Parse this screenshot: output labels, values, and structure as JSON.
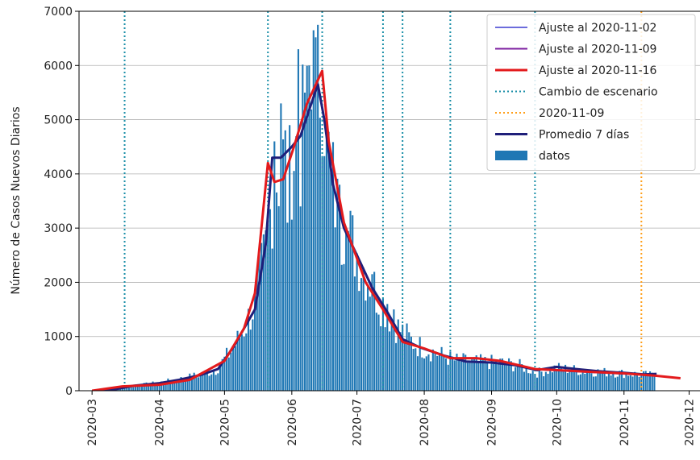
{
  "chart_data": {
    "type": "bar+line",
    "ylabel": "Número de Casos Nuevos Diarios",
    "ylim": [
      0,
      7000
    ],
    "yticks": [
      0,
      1000,
      2000,
      3000,
      4000,
      5000,
      6000,
      7000
    ],
    "ytick_labels": [
      "0",
      "1000",
      "2000",
      "3000",
      "4000",
      "5000",
      "6000",
      "7000"
    ],
    "xlim": [
      "2020-02-24",
      "2020-12-06"
    ],
    "xticks": [
      "2020-03-01",
      "2020-04-01",
      "2020-05-01",
      "2020-06-01",
      "2020-07-01",
      "2020-08-01",
      "2020-09-01",
      "2020-10-01",
      "2020-11-01",
      "2020-12-01"
    ],
    "xtick_labels": [
      "2020-03",
      "2020-04",
      "2020-05",
      "2020-06",
      "2020-07",
      "2020-08",
      "2020-09",
      "2020-10",
      "2020-11",
      "2020-12"
    ],
    "grid": "horizontal",
    "legend_position": "top-right",
    "legend": [
      {
        "label": "Ajuste al 2020-11-02",
        "kind": "line",
        "color": "#3b3bd0"
      },
      {
        "label": "Ajuste al 2020-11-09",
        "kind": "line",
        "color": "#7d1fa0"
      },
      {
        "label": "Ajuste al 2020-11-16",
        "kind": "line",
        "color": "#e31a1c"
      },
      {
        "label": "Cambio de escenario",
        "kind": "dotted",
        "color": "#1a8fa8"
      },
      {
        "label": "2020-11-09",
        "kind": "dotted",
        "color": "#ff9f1a"
      },
      {
        "label": "Promedio 7 días",
        "kind": "line",
        "color": "#1f1f7a"
      },
      {
        "label": "datos",
        "kind": "bar",
        "color": "#1f77b4"
      }
    ],
    "scenario_changes": [
      "2020-03-16",
      "2020-05-21",
      "2020-06-15",
      "2020-07-13",
      "2020-07-22",
      "2020-08-13",
      "2020-09-21"
    ],
    "marker_date": "2020-11-09",
    "bar_color": "#1f77b4",
    "bar_keypoints": [
      [
        "2020-03-03",
        3
      ],
      [
        "2020-03-10",
        20
      ],
      [
        "2020-03-17",
        60
      ],
      [
        "2020-03-24",
        110
      ],
      [
        "2020-04-01",
        150
      ],
      [
        "2020-04-10",
        210
      ],
      [
        "2020-04-20",
        300
      ],
      [
        "2020-04-27",
        380
      ],
      [
        "2020-05-05",
        780
      ],
      [
        "2020-05-10",
        1150
      ],
      [
        "2020-05-15",
        1600
      ],
      [
        "2020-05-20",
        2600
      ],
      [
        "2020-05-24",
        3900
      ],
      [
        "2020-05-28",
        4200
      ],
      [
        "2020-06-02",
        4400
      ],
      [
        "2020-06-07",
        4800
      ],
      [
        "2020-06-12",
        5600
      ],
      [
        "2020-06-15",
        5900
      ],
      [
        "2020-06-18",
        4300
      ],
      [
        "2020-06-22",
        3300
      ],
      [
        "2020-06-28",
        2800
      ],
      [
        "2020-07-05",
        2200
      ],
      [
        "2020-07-12",
        1650
      ],
      [
        "2020-07-20",
        1150
      ],
      [
        "2020-07-28",
        850
      ],
      [
        "2020-08-05",
        720
      ],
      [
        "2020-08-15",
        560
      ],
      [
        "2020-08-25",
        530
      ],
      [
        "2020-09-05",
        520
      ],
      [
        "2020-09-15",
        450
      ],
      [
        "2020-09-22",
        330
      ],
      [
        "2020-10-01",
        420
      ],
      [
        "2020-10-15",
        360
      ],
      [
        "2020-11-01",
        320
      ],
      [
        "2020-11-15",
        280
      ]
    ],
    "bar_spikes": [
      [
        "2020-05-24",
        4600
      ],
      [
        "2020-05-27",
        5300
      ],
      [
        "2020-05-31",
        4900
      ],
      [
        "2020-06-04",
        6300
      ],
      [
        "2020-06-07",
        5500
      ],
      [
        "2020-06-09",
        6000
      ],
      [
        "2020-06-11",
        6650
      ],
      [
        "2020-06-13",
        6750
      ],
      [
        "2020-06-17",
        5100
      ],
      [
        "2020-06-19",
        4400
      ],
      [
        "2020-06-23",
        3800
      ],
      [
        "2020-05-30",
        3100
      ],
      [
        "2020-06-05",
        3400
      ],
      [
        "2020-07-08",
        2150
      ],
      [
        "2020-07-15",
        1600
      ],
      [
        "2020-07-18",
        1500
      ],
      [
        "2020-06-26",
        3000
      ]
    ],
    "series": [
      {
        "name": "Promedio 7 días",
        "color": "#1f1f7a",
        "points": [
          [
            "2020-03-03",
            5
          ],
          [
            "2020-03-12",
            30
          ],
          [
            "2020-03-20",
            90
          ],
          [
            "2020-04-01",
            140
          ],
          [
            "2020-04-10",
            200
          ],
          [
            "2020-04-20",
            290
          ],
          [
            "2020-04-28",
            400
          ],
          [
            "2020-05-05",
            800
          ],
          [
            "2020-05-10",
            1150
          ],
          [
            "2020-05-15",
            1500
          ],
          [
            "2020-05-20",
            2700
          ],
          [
            "2020-05-23",
            4300
          ],
          [
            "2020-05-27",
            4300
          ],
          [
            "2020-06-01",
            4500
          ],
          [
            "2020-06-05",
            4700
          ],
          [
            "2020-06-10",
            5300
          ],
          [
            "2020-06-13",
            5650
          ],
          [
            "2020-06-16",
            5000
          ],
          [
            "2020-06-20",
            3800
          ],
          [
            "2020-06-25",
            3000
          ],
          [
            "2020-07-01",
            2500
          ],
          [
            "2020-07-08",
            1900
          ],
          [
            "2020-07-15",
            1450
          ],
          [
            "2020-07-22",
            950
          ],
          [
            "2020-07-30",
            800
          ],
          [
            "2020-08-10",
            650
          ],
          [
            "2020-08-20",
            540
          ],
          [
            "2020-09-01",
            520
          ],
          [
            "2020-09-12",
            470
          ],
          [
            "2020-09-22",
            380
          ],
          [
            "2020-10-01",
            440
          ],
          [
            "2020-10-10",
            400
          ],
          [
            "2020-10-20",
            360
          ],
          [
            "2020-11-01",
            330
          ],
          [
            "2020-11-10",
            300
          ],
          [
            "2020-11-16",
            310
          ]
        ]
      },
      {
        "name": "Ajuste al 2020-11-16",
        "color": "#e31a1c",
        "points": [
          [
            "2020-03-01",
            0
          ],
          [
            "2020-03-15",
            80
          ],
          [
            "2020-04-01",
            110
          ],
          [
            "2020-04-15",
            200
          ],
          [
            "2020-05-01",
            550
          ],
          [
            "2020-05-10",
            1150
          ],
          [
            "2020-05-15",
            1800
          ],
          [
            "2020-05-21",
            4200
          ],
          [
            "2020-05-24",
            3850
          ],
          [
            "2020-05-28",
            3900
          ],
          [
            "2020-06-02",
            4500
          ],
          [
            "2020-06-08",
            5300
          ],
          [
            "2020-06-15",
            5900
          ],
          [
            "2020-06-18",
            4600
          ],
          [
            "2020-06-25",
            3100
          ],
          [
            "2020-07-05",
            2000
          ],
          [
            "2020-07-13",
            1500
          ],
          [
            "2020-07-22",
            900
          ],
          [
            "2020-08-01",
            780
          ],
          [
            "2020-08-13",
            600
          ],
          [
            "2020-08-25",
            600
          ],
          [
            "2020-09-05",
            550
          ],
          [
            "2020-09-21",
            400
          ],
          [
            "2020-10-01",
            380
          ],
          [
            "2020-10-15",
            350
          ],
          [
            "2020-11-01",
            320
          ],
          [
            "2020-11-15",
            280
          ],
          [
            "2020-11-27",
            230
          ]
        ]
      },
      {
        "name": "Ajuste al 2020-11-09",
        "color": "#7d1fa0",
        "points": [
          [
            "2020-09-21",
            395
          ],
          [
            "2020-10-01",
            375
          ],
          [
            "2020-10-15",
            345
          ],
          [
            "2020-11-01",
            315
          ],
          [
            "2020-11-09",
            295
          ]
        ]
      },
      {
        "name": "Ajuste al 2020-11-02",
        "color": "#3b3bd0",
        "points": [
          [
            "2020-09-21",
            390
          ],
          [
            "2020-10-01",
            370
          ],
          [
            "2020-10-15",
            340
          ],
          [
            "2020-11-02",
            305
          ]
        ]
      }
    ]
  }
}
